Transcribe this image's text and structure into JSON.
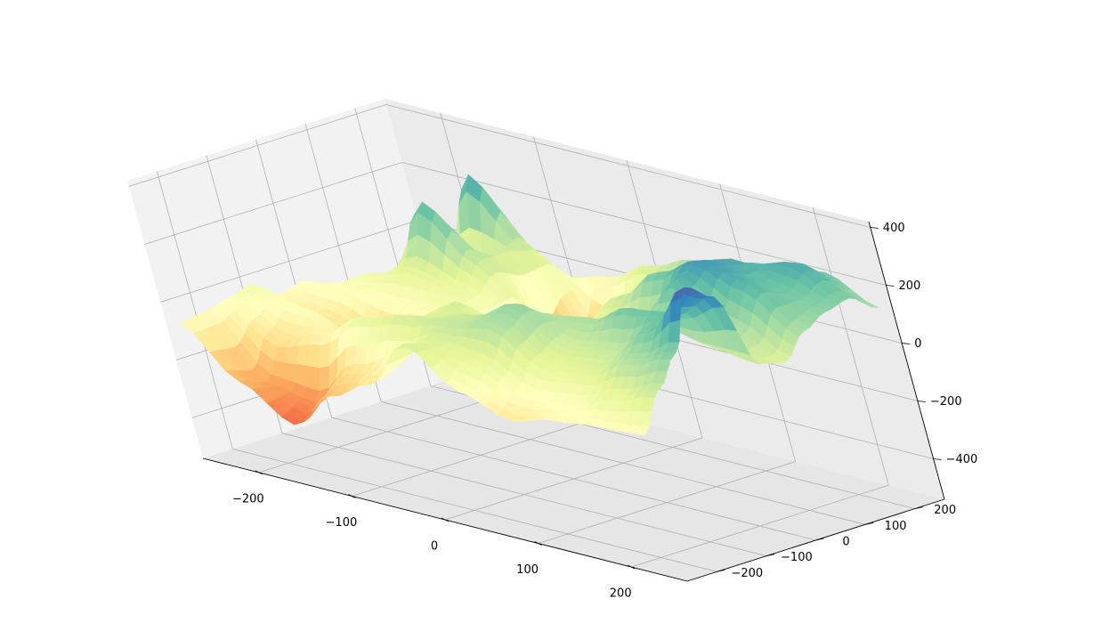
{
  "chart_data": {
    "type": "surface3d",
    "title": "",
    "xlabel": "",
    "ylabel": "",
    "zlabel": "",
    "x_ticks": [
      -200,
      -100,
      0,
      100,
      200
    ],
    "y_ticks": [
      -200,
      -100,
      0,
      100,
      200
    ],
    "z_ticks": [
      -400,
      -200,
      0,
      200,
      400
    ],
    "x_tick_labels": [
      "−200",
      "−100",
      "0",
      "100",
      "200"
    ],
    "y_tick_labels": [
      "−200",
      "−100",
      "0",
      "100",
      "200"
    ],
    "z_tick_labels": [
      "−400",
      "−200",
      "0",
      "200",
      "400"
    ],
    "xlim": [
      -260,
      260
    ],
    "ylim": [
      -260,
      260
    ],
    "zlim": [
      -540,
      420
    ],
    "colormap": "Spectral",
    "z_range_shown": [
      -520,
      400
    ],
    "grid": true,
    "pane_colors": [
      "#f2f2f2",
      "#e6e6e6",
      "#ebebeb"
    ],
    "grid_color": "#b0b0b0",
    "grid_points": {
      "x": [
        -250,
        -200,
        -150,
        -100,
        -50,
        0,
        50,
        100,
        150,
        200,
        250
      ],
      "y": [
        -250,
        -200,
        -150,
        -100,
        -50,
        0,
        50,
        100,
        150,
        200,
        250
      ]
    },
    "z": [
      [
        -70,
        -230,
        -340,
        -200,
        -120,
        60,
        -60,
        -120,
        -80,
        -60,
        -50
      ],
      [
        -60,
        -260,
        -290,
        -150,
        -80,
        40,
        20,
        -60,
        -40,
        20,
        80
      ],
      [
        -40,
        -140,
        -80,
        20,
        60,
        80,
        120,
        20,
        40,
        120,
        180
      ],
      [
        -20,
        -60,
        -100,
        -60,
        40,
        80,
        160,
        60,
        80,
        200,
        380
      ],
      [
        -80,
        -120,
        -240,
        -100,
        60,
        0,
        100,
        120,
        200,
        220,
        320
      ],
      [
        -60,
        -40,
        -60,
        -20,
        -40,
        -60,
        40,
        80,
        120,
        80,
        60
      ],
      [
        -120,
        -20,
        40,
        0,
        -80,
        -120,
        20,
        60,
        240,
        120,
        40
      ],
      [
        -260,
        -100,
        240,
        80,
        -140,
        -60,
        80,
        200,
        280,
        240,
        120
      ],
      [
        -320,
        -80,
        -60,
        80,
        -360,
        -100,
        60,
        180,
        260,
        200,
        160
      ],
      [
        -240,
        -120,
        280,
        60,
        -200,
        -80,
        40,
        120,
        220,
        260,
        180
      ],
      [
        -200,
        -140,
        -100,
        -60,
        -20,
        60,
        120,
        100,
        80,
        200,
        120
      ]
    ]
  }
}
